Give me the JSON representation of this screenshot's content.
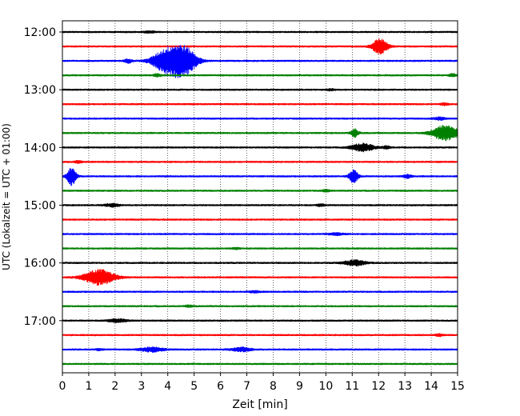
{
  "chart_data": {
    "type": "line",
    "title": "",
    "xlabel": "Zeit  [min]",
    "ylabel": "UTC (Lokalzeit = UTC + 01:00)",
    "xlim": [
      0,
      15
    ],
    "x_ticks": [
      0,
      1,
      2,
      3,
      4,
      5,
      6,
      7,
      8,
      9,
      10,
      11,
      12,
      13,
      14,
      15
    ],
    "y_tick_labels": [
      "12:00",
      "13:00",
      "14:00",
      "15:00",
      "16:00",
      "17:00"
    ],
    "row_interval_minutes": 15,
    "grid": "vertical-dotted",
    "legend": "none",
    "colors": [
      "#000000",
      "#ff0000",
      "#0000ff",
      "#008000"
    ],
    "rows": [
      {
        "label": "12:00",
        "color": "#000000",
        "events": [
          {
            "t": 3.3,
            "amp": 0.6,
            "w": 0.15
          }
        ]
      },
      {
        "label": "12:15",
        "color": "#ff0000",
        "events": [
          {
            "t": 12.05,
            "amp": 6,
            "w": 0.2
          }
        ]
      },
      {
        "label": "12:30",
        "color": "#0000ff",
        "events": [
          {
            "t": 2.5,
            "amp": 1.5,
            "w": 0.1
          },
          {
            "t": 3.9,
            "amp": 8,
            "w": 0.35
          },
          {
            "t": 4.3,
            "amp": 5,
            "w": 0.25
          },
          {
            "t": 4.7,
            "amp": 9,
            "w": 0.3
          }
        ]
      },
      {
        "label": "12:45",
        "color": "#008000",
        "events": [
          {
            "t": 3.6,
            "amp": 1,
            "w": 0.1
          },
          {
            "t": 14.8,
            "amp": 1,
            "w": 0.1
          }
        ]
      },
      {
        "label": "13:00",
        "color": "#000000",
        "events": [
          {
            "t": 10.2,
            "amp": 0.8,
            "w": 0.1
          }
        ]
      },
      {
        "label": "13:15",
        "color": "#ff0000",
        "events": [
          {
            "t": 14.5,
            "amp": 0.8,
            "w": 0.1
          }
        ]
      },
      {
        "label": "13:30",
        "color": "#0000ff",
        "events": [
          {
            "t": 14.3,
            "amp": 1,
            "w": 0.15
          }
        ]
      },
      {
        "label": "13:45",
        "color": "#008000",
        "events": [
          {
            "t": 11.1,
            "amp": 3,
            "w": 0.1
          },
          {
            "t": 14.55,
            "amp": 6,
            "w": 0.35
          }
        ]
      },
      {
        "label": "14:00",
        "color": "#000000",
        "events": [
          {
            "t": 11.4,
            "amp": 3,
            "w": 0.3
          },
          {
            "t": 12.3,
            "amp": 1,
            "w": 0.1
          }
        ]
      },
      {
        "label": "14:15",
        "color": "#ff0000",
        "events": [
          {
            "t": 0.6,
            "amp": 0.8,
            "w": 0.1
          }
        ]
      },
      {
        "label": "14:30",
        "color": "#0000ff",
        "events": [
          {
            "t": 0.35,
            "amp": 7,
            "w": 0.12
          },
          {
            "t": 11.05,
            "amp": 5,
            "w": 0.12
          },
          {
            "t": 13.1,
            "amp": 1.5,
            "w": 0.1
          }
        ]
      },
      {
        "label": "14:45",
        "color": "#008000",
        "events": [
          {
            "t": 10.0,
            "amp": 0.8,
            "w": 0.1
          }
        ]
      },
      {
        "label": "15:00",
        "color": "#000000",
        "events": [
          {
            "t": 1.9,
            "amp": 1.2,
            "w": 0.2
          },
          {
            "t": 9.8,
            "amp": 0.8,
            "w": 0.1
          }
        ]
      },
      {
        "label": "15:15",
        "color": "#ff0000",
        "events": []
      },
      {
        "label": "15:30",
        "color": "#0000ff",
        "events": [
          {
            "t": 10.4,
            "amp": 0.8,
            "w": 0.2
          }
        ]
      },
      {
        "label": "15:45",
        "color": "#008000",
        "events": [
          {
            "t": 6.6,
            "amp": 0.6,
            "w": 0.1
          }
        ]
      },
      {
        "label": "16:00",
        "color": "#000000",
        "events": [
          {
            "t": 11.1,
            "amp": 2,
            "w": 0.3
          }
        ]
      },
      {
        "label": "16:15",
        "color": "#ff0000",
        "events": [
          {
            "t": 1.4,
            "amp": 6,
            "w": 0.4
          }
        ]
      },
      {
        "label": "16:30",
        "color": "#0000ff",
        "events": [
          {
            "t": 7.3,
            "amp": 0.6,
            "w": 0.15
          }
        ]
      },
      {
        "label": "16:45",
        "color": "#008000",
        "events": [
          {
            "t": 4.8,
            "amp": 0.6,
            "w": 0.1
          }
        ]
      },
      {
        "label": "17:00",
        "color": "#000000",
        "events": [
          {
            "t": 2.1,
            "amp": 1.2,
            "w": 0.25
          }
        ]
      },
      {
        "label": "17:15",
        "color": "#ff0000",
        "events": [
          {
            "t": 14.3,
            "amp": 0.8,
            "w": 0.1
          }
        ]
      },
      {
        "label": "17:30",
        "color": "#0000ff",
        "events": [
          {
            "t": 3.4,
            "amp": 1.8,
            "w": 0.3
          },
          {
            "t": 6.8,
            "amp": 1.5,
            "w": 0.25
          },
          {
            "t": 1.4,
            "amp": 0.6,
            "w": 0.1
          }
        ]
      },
      {
        "label": "17:45",
        "color": "#008000",
        "events": []
      }
    ]
  }
}
